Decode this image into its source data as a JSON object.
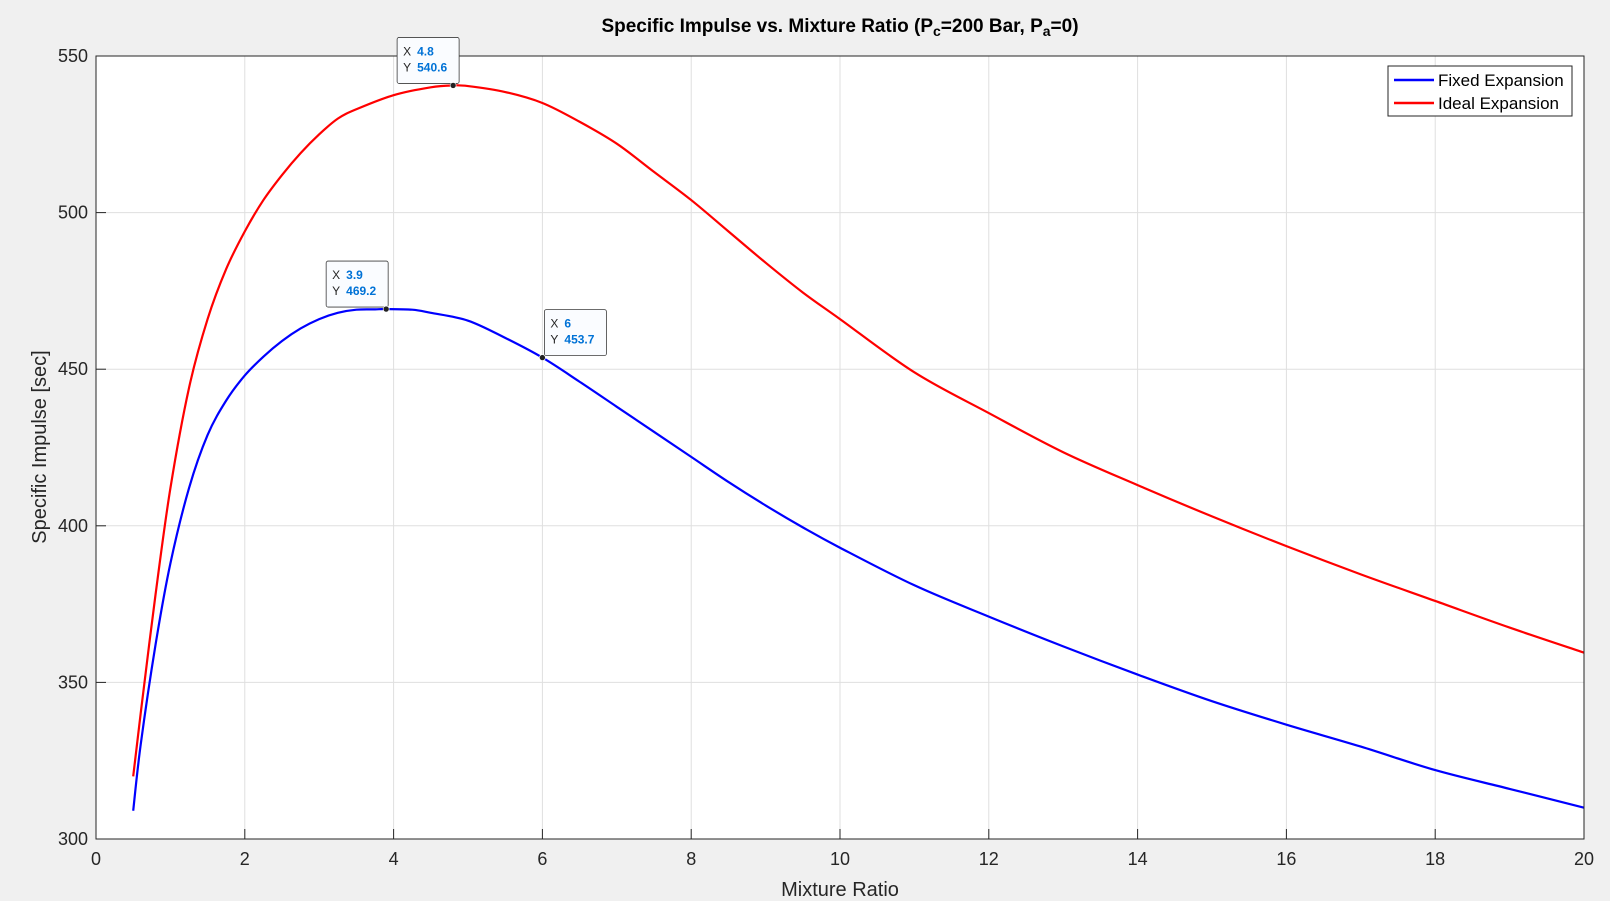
{
  "title": {
    "text_pre": "Specific Impulse vs. Mixture Ratio (P",
    "sub_c": "c",
    "text_mid": "=200 Bar, P",
    "sub_a": "a",
    "text_post": "=0)"
  },
  "chart_data": {
    "type": "line",
    "title": "Specific Impulse vs. Mixture Ratio (Pc=200 Bar, Pa=0)",
    "xlabel": "Mixture Ratio",
    "ylabel": "Specific Impulse [sec]",
    "xlim": [
      0,
      20
    ],
    "ylim": [
      300,
      550
    ],
    "xticks": [
      0,
      2,
      4,
      6,
      8,
      10,
      12,
      14,
      16,
      18,
      20
    ],
    "yticks": [
      300,
      350,
      400,
      450,
      500,
      550
    ],
    "grid": true,
    "legend_position": "top-right",
    "series": [
      {
        "name": "Fixed Expansion",
        "color": "#0000ff",
        "x": [
          0.5,
          0.6,
          0.8,
          1.0,
          1.25,
          1.5,
          1.75,
          2.0,
          2.25,
          2.5,
          2.75,
          3.0,
          3.25,
          3.5,
          3.75,
          3.9,
          4.25,
          4.5,
          5.0,
          5.5,
          6.0,
          6.5,
          7.0,
          7.5,
          8.0,
          8.5,
          9.0,
          9.5,
          10.0,
          11.0,
          12.0,
          13.0,
          14.0,
          15.0,
          16.0,
          17.0,
          18.0,
          19.0,
          20.0
        ],
        "y": [
          309,
          330,
          362,
          388,
          412,
          429,
          440,
          448,
          454,
          459,
          463,
          466,
          468,
          469,
          469.1,
          469.2,
          469,
          468,
          465.5,
          460,
          453.7,
          446,
          438,
          430,
          422,
          414,
          406.5,
          399.5,
          393,
          381,
          371,
          361.5,
          352.5,
          344,
          336.5,
          329.5,
          322,
          316,
          310
        ]
      },
      {
        "name": "Ideal Expansion",
        "color": "#ff0000",
        "x": [
          0.5,
          0.6,
          0.8,
          1.0,
          1.25,
          1.5,
          1.75,
          2.0,
          2.25,
          2.5,
          2.75,
          3.0,
          3.25,
          3.5,
          4.0,
          4.5,
          4.8,
          5.0,
          5.5,
          6.0,
          6.5,
          7.0,
          7.5,
          8.0,
          8.5,
          9.0,
          9.5,
          10.0,
          11.0,
          12.0,
          13.0,
          14.0,
          15.0,
          16.0,
          17.0,
          18.0,
          19.0,
          20.0
        ],
        "y": [
          320,
          340,
          378,
          412,
          444,
          466,
          482,
          494,
          504,
          512,
          519,
          525,
          530,
          533,
          537.5,
          540,
          540.6,
          540.4,
          538.5,
          535,
          529,
          522,
          513,
          504,
          494,
          484,
          474.5,
          466,
          449,
          436,
          423.5,
          413,
          403,
          393.5,
          384.5,
          376,
          367.5,
          359.5
        ]
      }
    ],
    "annotations": [
      {
        "x_label": "X",
        "x_value": "4.8",
        "y_label": "Y",
        "y_value": "540.6",
        "x": 4.8,
        "y": 540.6,
        "series": "Ideal Expansion"
      },
      {
        "x_label": "X",
        "x_value": "3.9",
        "y_label": "Y",
        "y_value": "469.2",
        "x": 3.9,
        "y": 469.2,
        "series": "Fixed Expansion"
      },
      {
        "x_label": "X",
        "x_value": "6",
        "y_label": "Y",
        "y_value": "453.7",
        "x": 6,
        "y": 453.7,
        "series": "Fixed Expansion"
      }
    ]
  }
}
